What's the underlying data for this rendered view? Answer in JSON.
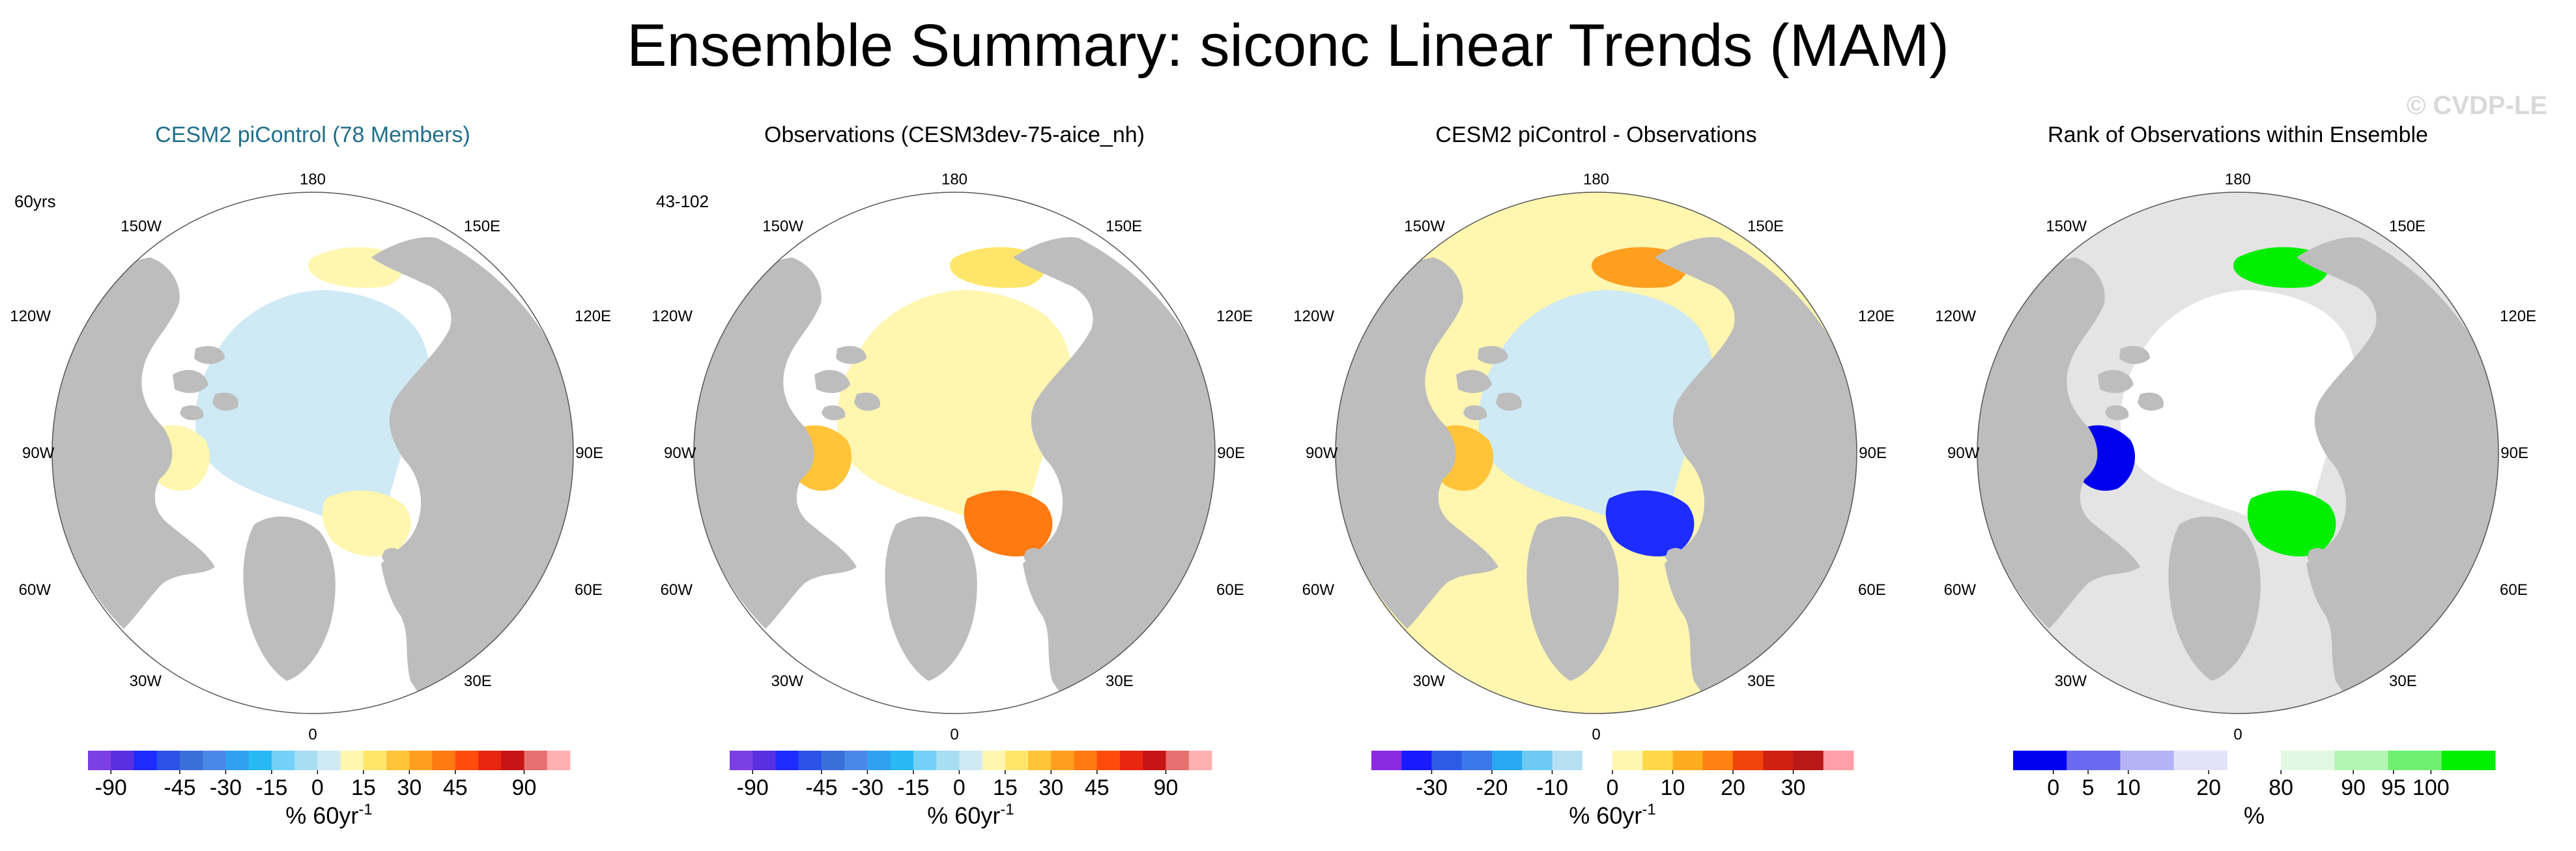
{
  "figure_title": "Ensemble Summary: siconc Linear Trends (MAM)",
  "watermark": "© CVDP-LE",
  "lon_labels": {
    "top": "180",
    "tl": "150W",
    "tr": "150E",
    "ul": "120W",
    "ur": "120E",
    "l": "90W",
    "r": "90E",
    "ll": "60W",
    "lr": "60E",
    "bl": "30W",
    "br": "30E",
    "bottom": "0"
  },
  "colors": {
    "land": "#bdbdbd",
    "ocean": "#ffffff",
    "zero_band": "#ffffff"
  },
  "chart_data": [
    {
      "type": "map",
      "title": "CESM2 piControl (78 Members)",
      "tag": "60yrs",
      "field": "siconc linear trend",
      "colorbar": {
        "colors": [
          "#7b3fe4",
          "#5a2fe0",
          "#1d2cff",
          "#2c51e6",
          "#3a6fd8",
          "#4a88e8",
          "#2fa0f0",
          "#28b8f4",
          "#73d0f6",
          "#a7def2",
          "#cfeaf5",
          "#fff6b0",
          "#ffe66a",
          "#ffc43a",
          "#ff9f20",
          "#ff7a10",
          "#ff4c0c",
          "#e8260f",
          "#c81414",
          "#e67070",
          "#ffb0b0"
        ],
        "tick_labels": [
          "-90",
          "-45",
          "-30",
          "-15",
          "0",
          "15",
          "30",
          "45",
          "90"
        ],
        "tick_boundaries": [
          1,
          4,
          6,
          8,
          10,
          12,
          14,
          16,
          19
        ],
        "unit": "% 60yr",
        "unit_exp": "-1"
      },
      "dominant_values": [
        "-5",
        "5"
      ]
    },
    {
      "type": "map",
      "title": "Observations (CESM3dev-75-aice_nh)",
      "tag": "43-102",
      "field": "siconc linear trend",
      "colorbar": {
        "colors": [
          "#7b3fe4",
          "#5a2fe0",
          "#1d2cff",
          "#2c51e6",
          "#3a6fd8",
          "#4a88e8",
          "#2fa0f0",
          "#28b8f4",
          "#73d0f6",
          "#a7def2",
          "#cfeaf5",
          "#fff6b0",
          "#ffe66a",
          "#ffc43a",
          "#ff9f20",
          "#ff7a10",
          "#ff4c0c",
          "#e8260f",
          "#c81414",
          "#e67070",
          "#ffb0b0"
        ],
        "tick_labels": [
          "-90",
          "-45",
          "-30",
          "-15",
          "0",
          "15",
          "30",
          "45",
          "90"
        ],
        "tick_boundaries": [
          1,
          4,
          6,
          8,
          10,
          12,
          14,
          16,
          19
        ],
        "unit": "% 60yr",
        "unit_exp": "-1"
      },
      "hotspot_values": [
        "30",
        "45"
      ]
    },
    {
      "type": "map",
      "title": "CESM2 piControl - Observations",
      "tag": "",
      "field": "siconc trend difference",
      "colorbar": {
        "colors": [
          "#8a2be2",
          "#1a1aff",
          "#2e5be6",
          "#3b78e8",
          "#28a8f0",
          "#6ccaf4",
          "#b5e0f4",
          "#ffffff",
          "#fff6b0",
          "#ffd84a",
          "#ffad1f",
          "#ff7f10",
          "#f1440c",
          "#d02010",
          "#b81818",
          "#ff9fa8"
        ],
        "tick_labels": [
          "-30",
          "-20",
          "-10",
          "0",
          "10",
          "20",
          "30"
        ],
        "tick_boundaries": [
          2,
          4,
          6,
          8,
          10,
          12,
          14
        ],
        "unit": "% 60yr",
        "unit_exp": "-1"
      },
      "hotspot_values": [
        "-30",
        "-20"
      ]
    },
    {
      "type": "map",
      "title": "Rank of Observations within Ensemble",
      "tag": "",
      "field": "percentile rank",
      "colorbar": {
        "colors": [
          "#0000ee",
          "#6a6aee",
          "#b3b3f5",
          "#e2e2f8",
          "#ffffff",
          "#e2f8e2",
          "#b3f5b3",
          "#6fee6f",
          "#00ee00"
        ],
        "tick_labels": [
          "0",
          "5",
          "10",
          "20",
          "80",
          "90",
          "95",
          "100"
        ],
        "tick_boundaries": [
          0.75,
          1.4,
          2.15,
          3.65,
          5.0,
          6.35,
          7.1,
          7.8
        ],
        "unit": "%",
        "unit_exp": ""
      },
      "categories": [
        "0",
        "5",
        "10",
        "20",
        "80",
        "90",
        "95",
        "100"
      ]
    }
  ]
}
